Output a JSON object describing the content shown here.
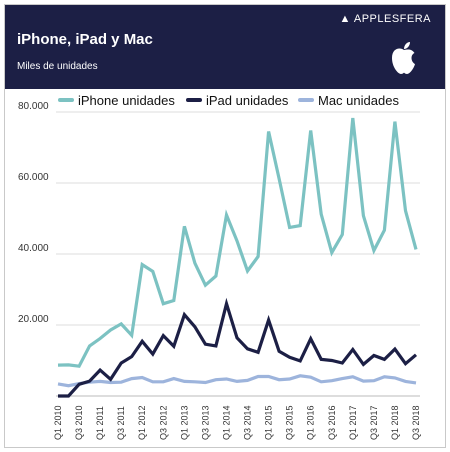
{
  "header": {
    "title": "iPhone, iPad y Mac",
    "subtitle": "Miles de unidades",
    "brand_logo_text": "APPLESFERA"
  },
  "colors": {
    "header_bg": "#1c1f45",
    "iphone": "#7cc2c2",
    "ipad": "#1c1f45",
    "mac": "#9db4dc",
    "grid": "#dcdcdc",
    "text": "#333333"
  },
  "icons": [
    "apple-logo-icon"
  ],
  "chart_data": {
    "type": "line",
    "title": "iPhone, iPad y Mac",
    "subtitle": "Miles de unidades",
    "xlabel": "",
    "ylabel": "",
    "ylim": [
      0,
      80000
    ],
    "yticks": [
      "20.000",
      "40.000",
      "60.000",
      "80.000"
    ],
    "ytick_values": [
      20000,
      40000,
      60000,
      80000
    ],
    "grid": true,
    "legend_position": "top",
    "categories": [
      "Q1 2010",
      "Q2 2010",
      "Q3 2010",
      "Q4 2010",
      "Q1 2011",
      "Q2 2011",
      "Q3 2011",
      "Q4 2011",
      "Q1 2012",
      "Q2 2012",
      "Q3 2012",
      "Q4 2012",
      "Q1 2013",
      "Q2 2013",
      "Q3 2013",
      "Q4 2013",
      "Q1 2014",
      "Q2 2014",
      "Q3 2014",
      "Q4 2014",
      "Q1 2015",
      "Q2 2015",
      "Q3 2015",
      "Q4 2015",
      "Q1 2016",
      "Q2 2016",
      "Q3 2016",
      "Q4 2016",
      "Q1 2017",
      "Q2 2017",
      "Q3 2017",
      "Q4 2017",
      "Q1 2018",
      "Q2 2018",
      "Q3 2018"
    ],
    "tick_labels": [
      "Q1 2010",
      "Q3 2010",
      "Q1 2011",
      "Q3 2011",
      "Q1 2012",
      "Q3 2012",
      "Q1 2013",
      "Q3 2013",
      "Q1 2014",
      "Q3 2014",
      "Q1 2015",
      "Q3 2015",
      "Q1 2016",
      "Q3 2016",
      "Q1 2017",
      "Q3 2017",
      "Q1 2018",
      "Q3 2018"
    ],
    "series": [
      {
        "name": "iPhone unidades",
        "values": [
          8700,
          8750,
          8400,
          14100,
          16200,
          18600,
          20300,
          17100,
          37000,
          35100,
          26000,
          26900,
          47800,
          37400,
          31200,
          33800,
          51000,
          43700,
          35200,
          39300,
          74500,
          61200,
          47500,
          48000,
          74800,
          51200,
          40400,
          45500,
          78300,
          50800,
          41000,
          46700,
          77300,
          52200,
          41300
        ]
      },
      {
        "name": "iPad unidades",
        "values": [
          0,
          0,
          3300,
          4200,
          7300,
          4700,
          9300,
          11100,
          15400,
          11800,
          17000,
          14000,
          22900,
          19500,
          14600,
          14100,
          26000,
          16400,
          13300,
          12300,
          21400,
          12600,
          10900,
          9900,
          16100,
          10300,
          10000,
          9300,
          13100,
          8900,
          11400,
          10300,
          13200,
          9100,
          11600
        ]
      },
      {
        "name": "Mac unidades",
        "values": [
          3400,
          2900,
          3500,
          3900,
          4100,
          3800,
          3900,
          4900,
          5200,
          4000,
          4000,
          4900,
          4100,
          4000,
          3800,
          4600,
          4800,
          4100,
          4400,
          5500,
          5500,
          4600,
          4800,
          5700,
          5300,
          4000,
          4300,
          4900,
          5400,
          4200,
          4300,
          5400,
          5100,
          4100,
          3700
        ]
      }
    ]
  }
}
